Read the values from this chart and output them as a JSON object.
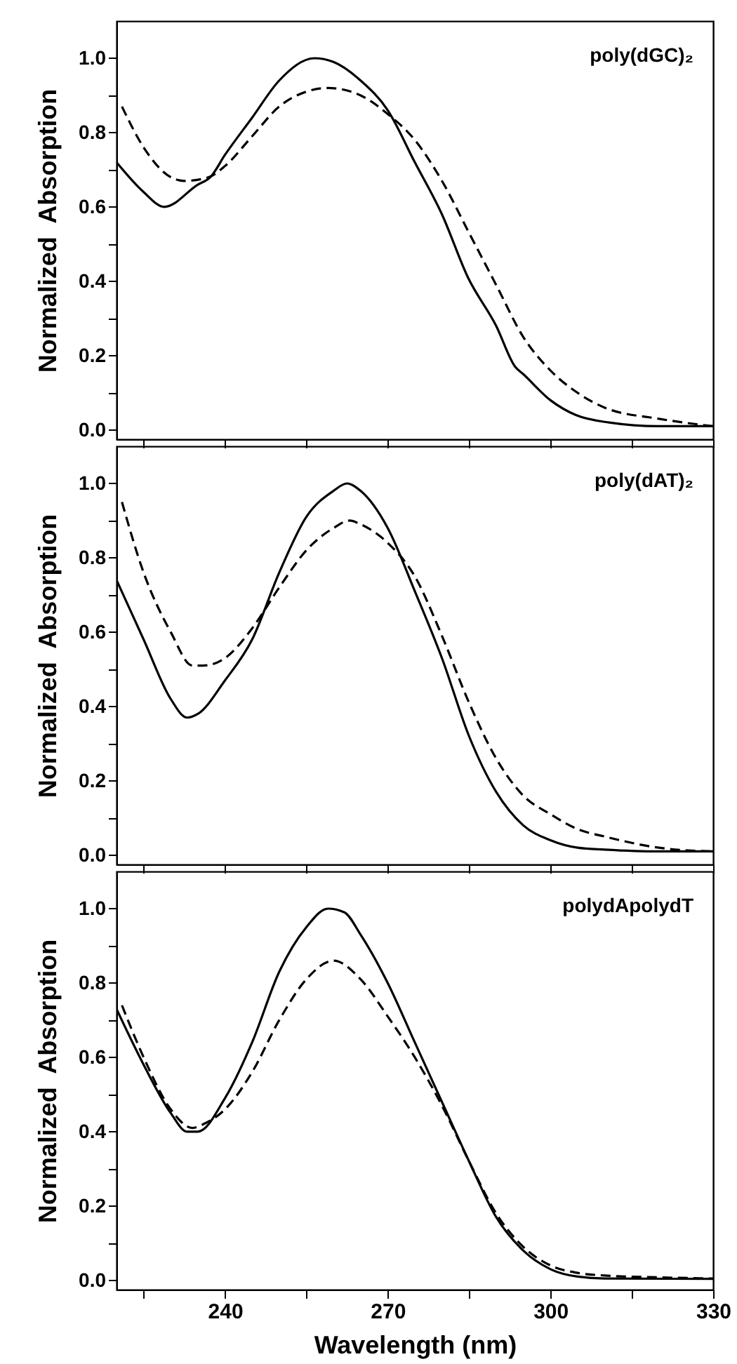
{
  "chart_data": [
    {
      "type": "line",
      "ylabel": "Normalized  Absorption",
      "annotations": [
        "poly(dGC)₂"
      ],
      "xlim": [
        220,
        330
      ],
      "ylim": [
        -0.025,
        1.1
      ],
      "xticks": [
        {
          "value": 225,
          "label": null
        },
        240,
        {
          "value": 255,
          "label": null
        },
        270,
        {
          "value": 285,
          "label": null
        },
        300,
        {
          "value": 315,
          "label": null
        },
        330
      ],
      "yticks": [
        {
          "value": 0,
          "label": "0.0"
        },
        {
          "value": 0.1,
          "label": null
        },
        {
          "value": 0.2,
          "label": "0.2"
        },
        {
          "value": 0.3,
          "label": null
        },
        {
          "value": 0.4,
          "label": "0.4"
        },
        {
          "value": 0.5,
          "label": null
        },
        {
          "value": 0.6,
          "label": "0.6"
        },
        {
          "value": 0.7,
          "label": null
        },
        {
          "value": 0.8,
          "label": "0.8"
        },
        {
          "value": 0.9,
          "label": null
        },
        {
          "value": 1,
          "label": "1.0"
        }
      ],
      "tick_labels": "y",
      "series": [
        {
          "color": "#000000",
          "line_style": "solid",
          "x": [
            220,
            225,
            228.8,
            235,
            237.3,
            240,
            245,
            250,
            256.5,
            260,
            265,
            270,
            275,
            280,
            284.8,
            290,
            293.5,
            295,
            300,
            304.7,
            310.8,
            320,
            330
          ],
          "values": [
            0.72,
            0.64,
            0.6,
            0.66,
            0.68,
            0.74,
            0.84,
            0.94,
            1.0,
            0.99,
            0.94,
            0.86,
            0.72,
            0.58,
            0.41,
            0.28,
            0.17,
            0.15,
            0.08,
            0.04,
            0.02,
            0.01,
            0.01
          ]
        },
        {
          "color": "#000000",
          "line_style": "dashed",
          "x": [
            221,
            225,
            230,
            232.5,
            237,
            240,
            245,
            250,
            255,
            259,
            265,
            270,
            275,
            280,
            285,
            290,
            295,
            300,
            305,
            310,
            320,
            330
          ],
          "values": [
            0.87,
            0.76,
            0.68,
            0.67,
            0.68,
            0.71,
            0.79,
            0.87,
            0.91,
            0.92,
            0.9,
            0.85,
            0.78,
            0.67,
            0.53,
            0.39,
            0.25,
            0.16,
            0.1,
            0.06,
            0.03,
            0.01
          ]
        }
      ]
    },
    {
      "type": "line",
      "ylabel": "Normalized  Absorption",
      "annotations": [
        "poly(dAT)₂"
      ],
      "xlim": [
        220,
        330
      ],
      "ylim": [
        -0.025,
        1.1
      ],
      "xticks": [
        {
          "value": 225,
          "label": null
        },
        240,
        {
          "value": 255,
          "label": null
        },
        270,
        {
          "value": 285,
          "label": null
        },
        300,
        {
          "value": 315,
          "label": null
        },
        330
      ],
      "yticks": [
        {
          "value": 0,
          "label": "0.0"
        },
        {
          "value": 0.1,
          "label": null
        },
        {
          "value": 0.2,
          "label": "0.2"
        },
        {
          "value": 0.3,
          "label": null
        },
        {
          "value": 0.4,
          "label": "0.4"
        },
        {
          "value": 0.5,
          "label": null
        },
        {
          "value": 0.6,
          "label": "0.6"
        },
        {
          "value": 0.7,
          "label": null
        },
        {
          "value": 0.8,
          "label": "0.8"
        },
        {
          "value": 0.9,
          "label": null
        },
        {
          "value": 1,
          "label": "1.0"
        }
      ],
      "tick_labels": "y",
      "series": [
        {
          "color": "#000000",
          "line_style": "solid",
          "x": [
            220,
            225,
            230,
            233,
            235,
            240,
            245,
            250,
            255,
            260,
            262.5,
            265,
            270,
            275,
            280,
            285,
            290,
            295,
            300,
            305,
            310,
            320,
            330
          ],
          "values": [
            0.74,
            0.58,
            0.42,
            0.37,
            0.38,
            0.47,
            0.58,
            0.76,
            0.91,
            0.98,
            1.0,
            0.98,
            0.88,
            0.71,
            0.53,
            0.32,
            0.17,
            0.08,
            0.04,
            0.02,
            0.015,
            0.01,
            0.01
          ]
        },
        {
          "color": "#000000",
          "line_style": "dashed",
          "x": [
            221,
            225,
            230,
            234,
            236,
            240,
            245,
            250,
            255,
            260,
            263,
            265,
            270,
            275,
            280,
            285,
            290,
            295,
            300,
            305,
            310,
            320,
            330
          ],
          "values": [
            0.95,
            0.76,
            0.6,
            0.51,
            0.51,
            0.53,
            0.61,
            0.72,
            0.82,
            0.88,
            0.9,
            0.89,
            0.84,
            0.75,
            0.59,
            0.41,
            0.26,
            0.16,
            0.11,
            0.07,
            0.05,
            0.02,
            0.01
          ]
        }
      ]
    },
    {
      "type": "line",
      "xlabel": "Wavelength (nm)",
      "ylabel": "Normalized  Absorption",
      "annotations": [
        "polydApolydT"
      ],
      "xlim": [
        220,
        330
      ],
      "ylim": [
        -0.025,
        1.1
      ],
      "xticks": [
        {
          "value": 225,
          "label": null
        },
        240,
        {
          "value": 255,
          "label": null
        },
        270,
        {
          "value": 285,
          "label": null
        },
        300,
        {
          "value": 315,
          "label": null
        },
        330
      ],
      "yticks": [
        {
          "value": 0,
          "label": "0.0"
        },
        {
          "value": 0.1,
          "label": null
        },
        {
          "value": 0.2,
          "label": "0.2"
        },
        {
          "value": 0.3,
          "label": null
        },
        {
          "value": 0.4,
          "label": "0.4"
        },
        {
          "value": 0.5,
          "label": null
        },
        {
          "value": 0.6,
          "label": "0.6"
        },
        {
          "value": 0.7,
          "label": null
        },
        {
          "value": 0.8,
          "label": "0.8"
        },
        {
          "value": 0.9,
          "label": null
        },
        {
          "value": 1,
          "label": "1.0"
        }
      ],
      "series": [
        {
          "color": "#000000",
          "line_style": "solid",
          "x": [
            220,
            225,
            230,
            233,
            235,
            240,
            245,
            250,
            255,
            259,
            262,
            265,
            270,
            275,
            280,
            285,
            290,
            295,
            300,
            305,
            310,
            330
          ],
          "values": [
            0.73,
            0.58,
            0.45,
            0.4,
            0.4,
            0.49,
            0.64,
            0.83,
            0.95,
            1.0,
            0.99,
            0.93,
            0.8,
            0.64,
            0.48,
            0.32,
            0.17,
            0.08,
            0.03,
            0.01,
            0.005,
            0.004
          ]
        },
        {
          "color": "#000000",
          "line_style": "dashed",
          "x": [
            221,
            225,
            230,
            234,
            236,
            240,
            245,
            250,
            255,
            260,
            265,
            270,
            275,
            280,
            285,
            290,
            295,
            300,
            305,
            310,
            320,
            330
          ],
          "values": [
            0.74,
            0.6,
            0.46,
            0.41,
            0.42,
            0.46,
            0.56,
            0.7,
            0.81,
            0.86,
            0.81,
            0.71,
            0.6,
            0.47,
            0.32,
            0.18,
            0.09,
            0.04,
            0.02,
            0.013,
            0.008,
            0.005
          ]
        }
      ]
    }
  ]
}
